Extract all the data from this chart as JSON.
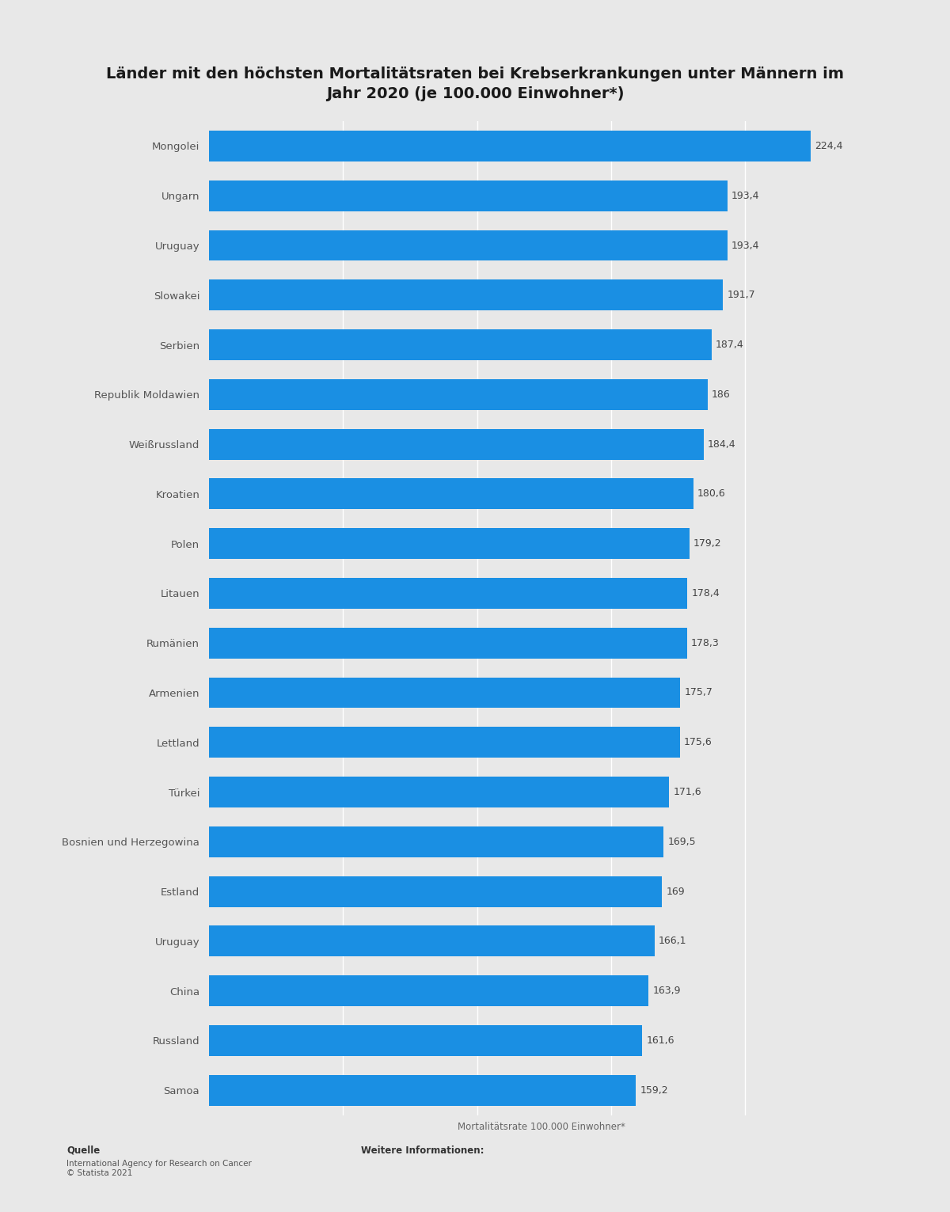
{
  "title": "Länder mit den höchsten Mortalitätsraten bei Krebserkrankungen unter Männern im\nJahr 2020 (je 100.000 Einwohner*)",
  "categories": [
    "Mongolei",
    "Ungarn",
    "Uruguay",
    "Slowakei",
    "Serbien",
    "Republik Moldawien",
    "Weißrussland",
    "Kroatien",
    "Polen",
    "Litauen",
    "Rumänien",
    "Armenien",
    "Lettland",
    "Türkei",
    "Bosnien und Herzegowina",
    "Estland",
    "Uruguay",
    "China",
    "Russland",
    "Samoa"
  ],
  "values": [
    224.4,
    193.4,
    193.4,
    191.7,
    187.4,
    186.0,
    184.4,
    180.6,
    179.2,
    178.4,
    178.3,
    175.7,
    175.6,
    171.6,
    169.5,
    169.0,
    166.1,
    163.9,
    161.6,
    159.2
  ],
  "bar_color": "#1a8fe3",
  "background_color": "#e8e8e8",
  "plot_background_color": "#e8e8e8",
  "xlabel": "Mortalitätsrate 100.000 Einwohner*",
  "source_label": "Quelle",
  "source_text": "International Agency for Research on Cancer\n© Statista 2021",
  "further_info_label": "Weitere Informationen:",
  "title_fontsize": 14,
  "label_fontsize": 9.5,
  "value_fontsize": 9,
  "xlabel_fontsize": 8.5,
  "grid_color": "white",
  "grid_vals": [
    50,
    100,
    150,
    200
  ]
}
